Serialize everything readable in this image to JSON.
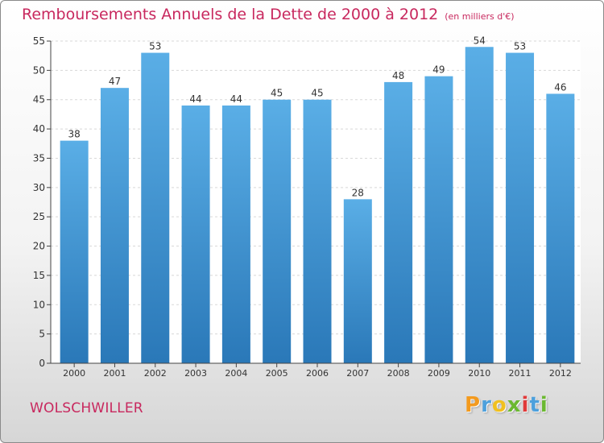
{
  "title": "Remboursements Annuels de la Dette de 2000 à 2012",
  "subtitle": "(en milliers d'€)",
  "commune": "WOLSCHWILLER",
  "logo": {
    "text": "Proxiti",
    "letter_colors": [
      "#f39a1e",
      "#4da0dc",
      "#f0c020",
      "#6bb831",
      "#e03a3a",
      "#4da0dc",
      "#6bb831"
    ]
  },
  "colors": {
    "title": "#c8285e",
    "bar_top": "#5aaee6",
    "bar_bottom": "#2a78b8"
  },
  "chart_data": {
    "type": "bar",
    "categories": [
      "2000",
      "2001",
      "2002",
      "2003",
      "2004",
      "2005",
      "2006",
      "2007",
      "2008",
      "2009",
      "2010",
      "2011",
      "2012"
    ],
    "values": [
      38,
      47,
      53,
      44,
      44,
      45,
      45,
      28,
      48,
      49,
      54,
      53,
      46
    ],
    "ylim": [
      0,
      55
    ],
    "yticks": [
      0,
      5,
      10,
      15,
      20,
      25,
      30,
      35,
      40,
      45,
      50,
      55
    ],
    "xlabel": "",
    "ylabel": "",
    "grid": true
  }
}
